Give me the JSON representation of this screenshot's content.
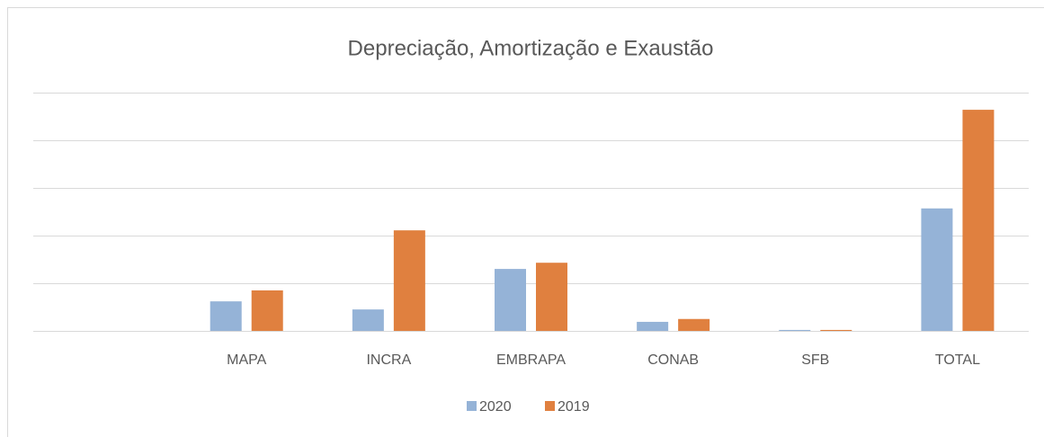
{
  "chart_data": {
    "type": "bar",
    "title": "Depreciação, Amortização e Exaustão",
    "categories": [
      null,
      "MAPA",
      "INCRA",
      "EMBRAPA",
      "CONAB",
      "SFB",
      "TOTAL"
    ],
    "series": [
      {
        "name": "2020",
        "color": "#95b3d7",
        "values": [
          null,
          0.62,
          0.45,
          1.3,
          0.19,
          0.02,
          2.57
        ]
      },
      {
        "name": "2019",
        "color": "#e0803f",
        "values": [
          null,
          0.85,
          2.11,
          1.43,
          0.25,
          0.02,
          4.64
        ]
      }
    ],
    "ylim": [
      0,
      5
    ],
    "yticks": [
      0,
      1,
      2,
      3,
      4,
      5
    ],
    "grid": true,
    "legend": "bottom"
  }
}
